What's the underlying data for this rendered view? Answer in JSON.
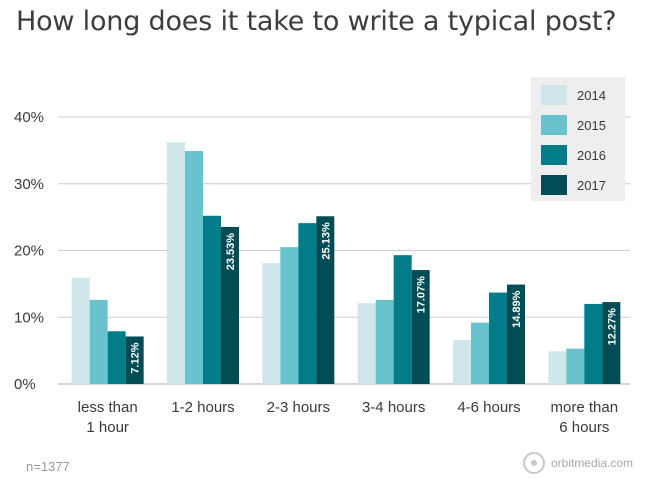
{
  "title": "How long does it take to write a typical post?",
  "footer": {
    "sample_size": "n=1377",
    "brand": "orbitmedia.com"
  },
  "colors": {
    "2014": "#cfe6ea",
    "2015": "#69c3cf",
    "2016": "#037c8a",
    "2017": "#024c55",
    "legend_bg": "#eeeeee",
    "grid": "#cccccc"
  },
  "chart_data": {
    "type": "bar",
    "title": "How long does it take to write a typical post?",
    "categories": [
      [
        "less than",
        "1 hour"
      ],
      [
        "1-2 hours"
      ],
      [
        "2-3 hours"
      ],
      [
        "3-4 hours"
      ],
      [
        "4-6 hours"
      ],
      [
        "more than",
        "6 hours"
      ]
    ],
    "series": [
      {
        "name": "2014",
        "values": [
          15.9,
          36.2,
          18.1,
          12.1,
          6.6,
          4.9
        ]
      },
      {
        "name": "2015",
        "values": [
          12.6,
          34.9,
          20.5,
          12.6,
          9.2,
          5.3
        ]
      },
      {
        "name": "2016",
        "values": [
          7.9,
          25.2,
          24.1,
          19.3,
          13.7,
          12.0
        ]
      },
      {
        "name": "2017",
        "values": [
          7.12,
          23.53,
          25.13,
          17.07,
          14.89,
          12.27
        ]
      }
    ],
    "data_labels": {
      "series": "2017",
      "labels": [
        "7.12%",
        "23.53%",
        "25.13%",
        "17.07%",
        "14.89%",
        "12.27%"
      ]
    },
    "y_ticks": [
      "0%",
      "10%",
      "20%",
      "30%",
      "40%"
    ],
    "ylim": [
      0,
      40
    ],
    "grid": true,
    "legend_position": "top-right"
  }
}
